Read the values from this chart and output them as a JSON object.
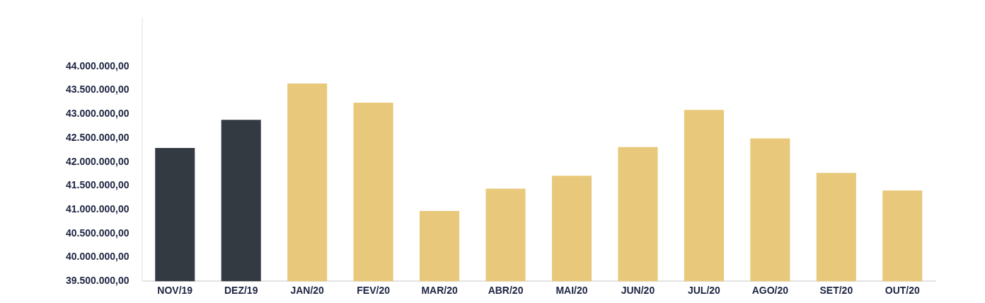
{
  "chart_data": {
    "type": "bar",
    "categories": [
      "NOV/19",
      "DEZ/19",
      "JAN/20",
      "FEV/20",
      "MAR/20",
      "ABR/20",
      "MAI/20",
      "JUN/20",
      "JUL/20",
      "AGO/20",
      "SET/20",
      "OUT/20"
    ],
    "values": [
      42290000,
      42880000,
      43640000,
      43240000,
      40970000,
      41440000,
      41710000,
      42310000,
      43090000,
      42490000,
      41770000,
      41400000
    ],
    "colors": [
      "#343a42",
      "#343a42",
      "#e8c87a",
      "#e8c87a",
      "#e8c87a",
      "#e8c87a",
      "#e8c87a",
      "#e8c87a",
      "#e8c87a",
      "#e8c87a",
      "#e8c87a",
      "#e8c87a"
    ],
    "ylim": [
      39500000,
      45000000
    ],
    "yticks": [
      {
        "value": 39500000,
        "label": "39.500.000,00"
      },
      {
        "value": 40000000,
        "label": "40.000.000,00"
      },
      {
        "value": 40500000,
        "label": "40.500.000,00"
      },
      {
        "value": 41000000,
        "label": "41.000.000,00"
      },
      {
        "value": 41500000,
        "label": "41.500.000,00"
      },
      {
        "value": 42000000,
        "label": "42.000.000,00"
      },
      {
        "value": 42500000,
        "label": "42.500.000,00"
      },
      {
        "value": 43000000,
        "label": "43.000.000,00"
      },
      {
        "value": 43500000,
        "label": "43.500.000,00"
      },
      {
        "value": 44000000,
        "label": "44.000.000,00"
      }
    ],
    "grid": false,
    "legend": false
  }
}
